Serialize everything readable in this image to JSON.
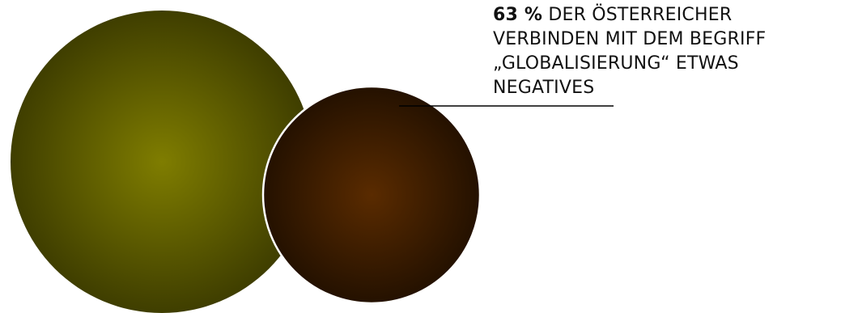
{
  "callout": {
    "highlight": "63 %",
    "text_line1": "DER ÖSTERREICHER",
    "text_line2": "VERBINDEN MIT DEM BEGRIFF",
    "text_line3": "„GLOBALISIERUNG“ ETWAS",
    "text_line4": "NEGATIVES"
  },
  "colors": {
    "large_circle_center": "#7f7d00",
    "large_circle_edge": "#3f3e00",
    "small_circle_center": "#5a2b00",
    "small_circle_edge": "#241100",
    "small_circle_outline": "#ffffff",
    "leader_line": "#000000",
    "text": "#111111"
  }
}
